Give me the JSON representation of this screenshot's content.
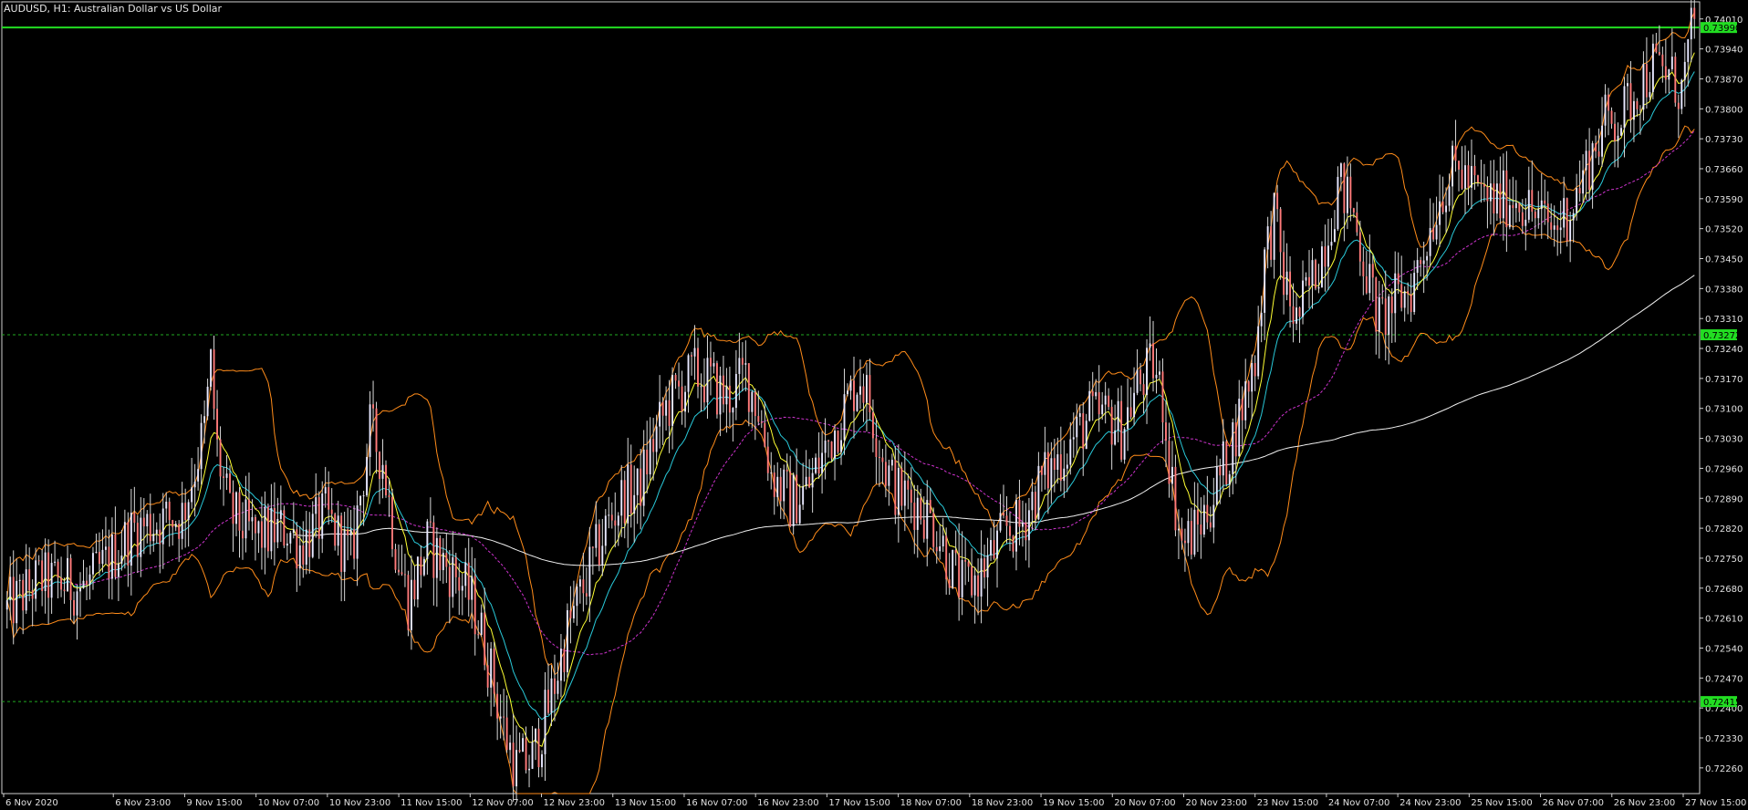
{
  "window": {
    "title": "AUDUSD, H1:  Australian Dollar vs US Dollar"
  },
  "colors": {
    "background": "#000000",
    "frame": "#d0d0d0",
    "bull_candle": "#e8e8ff",
    "bear_candle": "#ff7a7a",
    "wick": "#d8d8d8",
    "bollinger": "#ff8c1a",
    "ema_fast": "#ffff33",
    "ema_mid": "#29c9d9",
    "sma_slow": "#cc33cc",
    "sma_long": "#f0f0f0",
    "current_price_line": "#22dd22",
    "level_line": "#22aa22",
    "price_badge_bg": "#22dd22",
    "price_badge_text": "#000000",
    "axis_text": "#e0e0e0"
  },
  "chart_data": {
    "type": "candlestick",
    "symbol": "AUDUSD",
    "timeframe": "H1",
    "title": "AUDUSD, H1:  Australian Dollar vs US Dollar",
    "ylim": [
      0.722,
      0.7405
    ],
    "y_ticks": [
      "0.74010",
      "0.73940",
      "0.73870",
      "0.73800",
      "0.73730",
      "0.73660",
      "0.73590",
      "0.73520",
      "0.73450",
      "0.73380",
      "0.73310",
      "0.73240",
      "0.73170",
      "0.73100",
      "0.73030",
      "0.72960",
      "0.72890",
      "0.72820",
      "0.72750",
      "0.72680",
      "0.72610",
      "0.72540",
      "0.72470",
      "0.72400",
      "0.72330",
      "0.72260"
    ],
    "x_ticks": [
      "6 Nov 2020",
      "6 Nov 23:00",
      "9 Nov 15:00",
      "10 Nov 07:00",
      "10 Nov 23:00",
      "11 Nov 15:00",
      "12 Nov 07:00",
      "12 Nov 23:00",
      "13 Nov 15:00",
      "16 Nov 07:00",
      "16 Nov 23:00",
      "17 Nov 15:00",
      "18 Nov 07:00",
      "18 Nov 23:00",
      "19 Nov 15:00",
      "20 Nov 07:00",
      "20 Nov 23:00",
      "23 Nov 15:00",
      "24 Nov 07:00",
      "24 Nov 23:00",
      "25 Nov 15:00",
      "26 Nov 07:00",
      "26 Nov 23:00",
      "27 Nov 15:00"
    ],
    "horizontal_lines": [
      {
        "price": 0.7399,
        "label": "0.73990",
        "style": "solid",
        "kind": "current"
      },
      {
        "price": 0.73272,
        "label": "0.73272",
        "style": "dashed",
        "kind": "level"
      },
      {
        "price": 0.72415,
        "label": "0.72415",
        "style": "dashed",
        "kind": "level"
      }
    ],
    "close_path": [
      [
        0,
        0.7263
      ],
      [
        10,
        0.727
      ],
      [
        25,
        0.7268
      ],
      [
        40,
        0.7282
      ],
      [
        55,
        0.7285
      ],
      [
        62,
        0.7305
      ],
      [
        64,
        0.732
      ],
      [
        66,
        0.73
      ],
      [
        70,
        0.7285
      ],
      [
        78,
        0.728
      ],
      [
        88,
        0.7282
      ],
      [
        92,
        0.7278
      ],
      [
        100,
        0.7285
      ],
      [
        108,
        0.7275
      ],
      [
        114,
        0.7305
      ],
      [
        118,
        0.7298
      ],
      [
        122,
        0.7278
      ],
      [
        126,
        0.7265
      ],
      [
        132,
        0.7278
      ],
      [
        136,
        0.7275
      ],
      [
        142,
        0.727
      ],
      [
        146,
        0.7265
      ],
      [
        150,
        0.7255
      ],
      [
        156,
        0.7235
      ],
      [
        160,
        0.7226
      ],
      [
        165,
        0.7228
      ],
      [
        170,
        0.724
      ],
      [
        176,
        0.7258
      ],
      [
        182,
        0.727
      ],
      [
        188,
        0.7282
      ],
      [
        194,
        0.729
      ],
      [
        198,
        0.729
      ],
      [
        202,
        0.73
      ],
      [
        207,
        0.731
      ],
      [
        212,
        0.7315
      ],
      [
        216,
        0.7318
      ],
      [
        221,
        0.7316
      ],
      [
        226,
        0.7312
      ],
      [
        232,
        0.7318
      ],
      [
        236,
        0.731
      ],
      [
        240,
        0.7295
      ],
      [
        246,
        0.7288
      ],
      [
        252,
        0.7292
      ],
      [
        258,
        0.7302
      ],
      [
        263,
        0.731
      ],
      [
        268,
        0.7318
      ],
      [
        272,
        0.7308
      ],
      [
        276,
        0.7296
      ],
      [
        280,
        0.729
      ],
      [
        286,
        0.7288
      ],
      [
        292,
        0.7282
      ],
      [
        297,
        0.7272
      ],
      [
        300,
        0.7268
      ],
      [
        304,
        0.727
      ],
      [
        309,
        0.7275
      ],
      [
        314,
        0.7282
      ],
      [
        318,
        0.7282
      ],
      [
        324,
        0.7292
      ],
      [
        328,
        0.7296
      ],
      [
        334,
        0.7302
      ],
      [
        340,
        0.7308
      ],
      [
        346,
        0.7308
      ],
      [
        350,
        0.7305
      ],
      [
        355,
        0.7315
      ],
      [
        360,
        0.732
      ],
      [
        363,
        0.7312
      ],
      [
        366,
        0.7292
      ],
      [
        369,
        0.7278
      ],
      [
        374,
        0.7282
      ],
      [
        378,
        0.7288
      ],
      [
        383,
        0.7298
      ],
      [
        387,
        0.7308
      ],
      [
        392,
        0.7322
      ],
      [
        395,
        0.7345
      ],
      [
        398,
        0.7355
      ],
      [
        401,
        0.734
      ],
      [
        405,
        0.733
      ],
      [
        410,
        0.734
      ],
      [
        415,
        0.7352
      ],
      [
        418,
        0.7362
      ],
      [
        422,
        0.7358
      ],
      [
        427,
        0.7342
      ],
      [
        431,
        0.733
      ],
      [
        436,
        0.7335
      ],
      [
        441,
        0.7338
      ],
      [
        446,
        0.735
      ],
      [
        451,
        0.7362
      ],
      [
        456,
        0.7366
      ],
      [
        462,
        0.736
      ],
      [
        468,
        0.7358
      ],
      [
        474,
        0.736
      ],
      [
        480,
        0.7355
      ],
      [
        486,
        0.7352
      ],
      [
        492,
        0.7358
      ],
      [
        497,
        0.7368
      ],
      [
        502,
        0.7377
      ],
      [
        507,
        0.7378
      ],
      [
        512,
        0.7385
      ],
      [
        517,
        0.739
      ],
      [
        522,
        0.7388
      ],
      [
        526,
        0.7384
      ],
      [
        530,
        0.7401
      ]
    ],
    "x_count": 531,
    "indicators": {
      "ema_fast_period": 10,
      "ema_mid_period": 20,
      "sma_slow_period": 50,
      "sma_long_period": 200,
      "bollinger_period": 20,
      "bollinger_k": 2
    }
  }
}
